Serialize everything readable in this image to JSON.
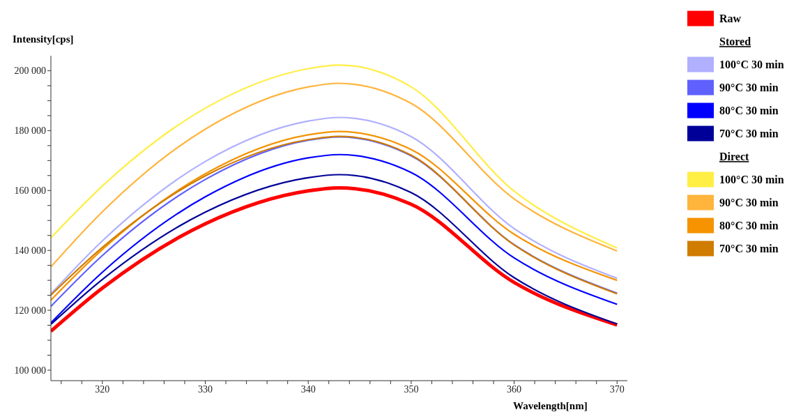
{
  "chart_data": {
    "type": "line",
    "xlabel": "Wavelength[nm]",
    "ylabel": "Intensity[cps]",
    "x": [
      315,
      320,
      330,
      340,
      343,
      350,
      360,
      370
    ],
    "xlim": [
      315,
      371
    ],
    "xticks": [
      {
        "value": 316,
        "label": null
      },
      {
        "value": 318,
        "label": null
      },
      320,
      {
        "value": 322,
        "label": null
      },
      {
        "value": 324,
        "label": null
      },
      {
        "value": 326,
        "label": null
      },
      {
        "value": 328,
        "label": null
      },
      330,
      {
        "value": 332,
        "label": null
      },
      {
        "value": 334,
        "label": null
      },
      {
        "value": 336,
        "label": null
      },
      {
        "value": 338,
        "label": null
      },
      340,
      {
        "value": 342,
        "label": null
      },
      {
        "value": 344,
        "label": null
      },
      {
        "value": 346,
        "label": null
      },
      {
        "value": 348,
        "label": null
      },
      350,
      {
        "value": 352,
        "label": null
      },
      {
        "value": 354,
        "label": null
      },
      {
        "value": 356,
        "label": null
      },
      {
        "value": 358,
        "label": null
      },
      360,
      {
        "value": 362,
        "label": null
      },
      {
        "value": 364,
        "label": null
      },
      {
        "value": 366,
        "label": null
      },
      {
        "value": 368,
        "label": null
      },
      370
    ],
    "ylim": [
      96500,
      205000
    ],
    "yticks": [
      {
        "value": 100000,
        "label": "100 000"
      },
      {
        "value": 105000,
        "label": null
      },
      {
        "value": 110000,
        "label": null
      },
      {
        "value": 115000,
        "label": null
      },
      {
        "value": 120000,
        "label": "120 000"
      },
      {
        "value": 125000,
        "label": null
      },
      {
        "value": 130000,
        "label": null
      },
      {
        "value": 135000,
        "label": null
      },
      {
        "value": 140000,
        "label": "140 000"
      },
      {
        "value": 145000,
        "label": null
      },
      {
        "value": 150000,
        "label": null
      },
      {
        "value": 155000,
        "label": null
      },
      {
        "value": 160000,
        "label": "160 000"
      },
      {
        "value": 165000,
        "label": null
      },
      {
        "value": 170000,
        "label": null
      },
      {
        "value": 175000,
        "label": null
      },
      {
        "value": 180000,
        "label": "180 000"
      },
      {
        "value": 185000,
        "label": null
      },
      {
        "value": 190000,
        "label": null
      },
      {
        "value": 195000,
        "label": null
      },
      {
        "value": 200000,
        "label": "200 000"
      }
    ],
    "grid": false,
    "legend": "top right",
    "marker": "none",
    "line_style": "solid",
    "annotations": [
      "Stored",
      "Direct"
    ],
    "series": [
      {
        "name": "Raw",
        "color": "#ff0000",
        "values": [
          113000,
          127400,
          148900,
          159900,
          160900,
          155400,
          129300,
          115100
        ]
      },
      {
        "name": "100°C 30 min",
        "color": "#b0b0ff",
        "values": [
          125500,
          143200,
          169700,
          183200,
          184400,
          178000,
          147300,
          130700
        ]
      },
      {
        "name": "90°C 30 min",
        "color": "#6060ff",
        "values": [
          121300,
          138300,
          163700,
          176800,
          177900,
          171600,
          141900,
          125700
        ]
      },
      {
        "name": "80°C 30 min",
        "color": "#0000ff",
        "values": [
          115800,
          132700,
          157900,
          170900,
          172000,
          166000,
          137500,
          122000
        ]
      },
      {
        "name": "70°C 30 min",
        "color": "#000099",
        "values": [
          115300,
          130300,
          152800,
          164300,
          165300,
          159300,
          130900,
          115400
        ]
      },
      {
        "name": "100°C 30 min",
        "color": "#ffee44",
        "values": [
          144200,
          161500,
          187500,
          200700,
          201900,
          194600,
          159800,
          140800
        ]
      },
      {
        "name": "90°C 30 min",
        "color": "#ffb43c",
        "values": [
          134500,
          152900,
          180500,
          194600,
          195800,
          189100,
          157200,
          139800
        ]
      },
      {
        "name": "80°C 30 min",
        "color": "#f59300",
        "values": [
          123400,
          140300,
          165600,
          178600,
          179700,
          173700,
          145400,
          130000
        ]
      },
      {
        "name": "70°C 30 min",
        "color": "#d07c00",
        "values": [
          125100,
          141000,
          164900,
          177000,
          178100,
          171800,
          141800,
          125500
        ]
      }
    ]
  }
}
